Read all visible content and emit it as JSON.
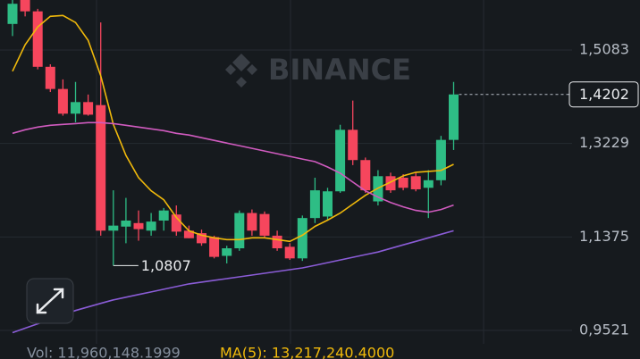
{
  "chart_data": {
    "type": "candlestick",
    "watermark": "BINANCE",
    "open": [
      1.56,
      1.61,
      1.585,
      1.475,
      1.431,
      1.382,
      1.405,
      1.399,
      1.15,
      1.158,
      1.165,
      1.15,
      1.17,
      1.182,
      1.15,
      1.145,
      1.137,
      1.1,
      1.115,
      1.185,
      1.183,
      1.14,
      1.118,
      1.095,
      1.175,
      1.178,
      1.228,
      1.35,
      1.29,
      1.208,
      1.258,
      1.255,
      1.258,
      1.235,
      1.25,
      1.33
    ],
    "high": [
      1.62,
      1.615,
      1.59,
      1.48,
      1.45,
      1.445,
      1.42,
      1.563,
      1.23,
      1.215,
      1.19,
      1.185,
      1.195,
      1.2,
      1.16,
      1.152,
      1.14,
      1.12,
      1.19,
      1.192,
      1.188,
      1.15,
      1.125,
      1.18,
      1.255,
      1.235,
      1.36,
      1.408,
      1.295,
      1.27,
      1.265,
      1.262,
      1.265,
      1.27,
      1.338,
      1.445
    ],
    "low": [
      1.536,
      1.575,
      1.47,
      1.425,
      1.378,
      1.365,
      1.378,
      1.14,
      1.0807,
      1.125,
      1.13,
      1.14,
      1.15,
      1.14,
      1.135,
      1.12,
      1.095,
      1.085,
      1.11,
      1.14,
      1.135,
      1.11,
      1.092,
      1.09,
      1.165,
      1.17,
      1.225,
      1.28,
      1.225,
      1.2,
      1.225,
      1.23,
      1.228,
      1.175,
      1.24,
      1.31
    ],
    "close": [
      1.6,
      1.585,
      1.475,
      1.431,
      1.382,
      1.405,
      1.38,
      1.15,
      1.16,
      1.17,
      1.153,
      1.168,
      1.19,
      1.148,
      1.135,
      1.125,
      1.098,
      1.115,
      1.185,
      1.15,
      1.14,
      1.115,
      1.095,
      1.175,
      1.23,
      1.228,
      1.35,
      1.29,
      1.23,
      1.258,
      1.23,
      1.235,
      1.232,
      1.25,
      1.33,
      1.4202
    ],
    "up_color": "#2ebd85",
    "down_color": "#f6465d",
    "lines": [
      {
        "color": "#f0b90b",
        "values": [
          1.4661,
          1.5188,
          1.554,
          1.5751,
          1.5768,
          1.5628,
          1.5276,
          1.4573,
          1.3607,
          1.2992,
          1.2552,
          1.2289,
          1.2113,
          1.1761,
          1.1497,
          1.1409,
          1.1357,
          1.1322,
          1.1322,
          1.1357,
          1.1357,
          1.1322,
          1.1287,
          1.1409,
          1.1585,
          1.1709,
          1.1849,
          1.2025,
          1.2201,
          1.2342,
          1.2464,
          1.2588,
          1.2658,
          1.2675,
          1.2693,
          1.2816
        ]
      },
      {
        "color": "#d05bbf",
        "values": [
          1.3431,
          1.3501,
          1.3554,
          1.3589,
          1.3607,
          1.3624,
          1.3642,
          1.3642,
          1.3624,
          1.3589,
          1.3554,
          1.3519,
          1.3484,
          1.3431,
          1.3396,
          1.3343,
          1.329,
          1.3238,
          1.3185,
          1.3132,
          1.308,
          1.3027,
          1.2974,
          1.2921,
          1.2869,
          1.2763,
          1.264,
          1.2464,
          1.2289,
          1.2166,
          1.206,
          1.1972,
          1.1902,
          1.1867,
          1.1919,
          1.2007
        ]
      },
      {
        "color": "#8a5cd6",
        "values": [
          0.9477,
          0.9565,
          0.9652,
          0.974,
          0.9828,
          0.9916,
          0.9986,
          1.0057,
          1.0127,
          1.018,
          1.0233,
          1.0285,
          1.0338,
          1.0391,
          1.0444,
          1.0479,
          1.0514,
          1.0549,
          1.0584,
          1.0619,
          1.0655,
          1.069,
          1.0725,
          1.076,
          1.0813,
          1.0866,
          1.0918,
          1.0971,
          1.1024,
          1.1076,
          1.1147,
          1.1217,
          1.1287,
          1.1357,
          1.1428,
          1.1498
        ]
      }
    ],
    "ylim": [
      0.8954,
      1.6075
    ],
    "yticks": [
      {
        "value": 1.5083,
        "label": "1,5083"
      },
      {
        "value": 1.3229,
        "label": "1,3229"
      },
      {
        "value": 1.1375,
        "label": "1,1375"
      },
      {
        "value": 0.9521,
        "label": "0,9521"
      }
    ],
    "grid": true,
    "last_price": {
      "value": 1.4202,
      "label": "1,4202"
    },
    "low_marker": {
      "value": 1.0807,
      "label": "1,0807"
    },
    "volume_text": "Vol: 11,960,148.1999",
    "volume_ma_text": "MA(5): 13,217,240.4000"
  }
}
